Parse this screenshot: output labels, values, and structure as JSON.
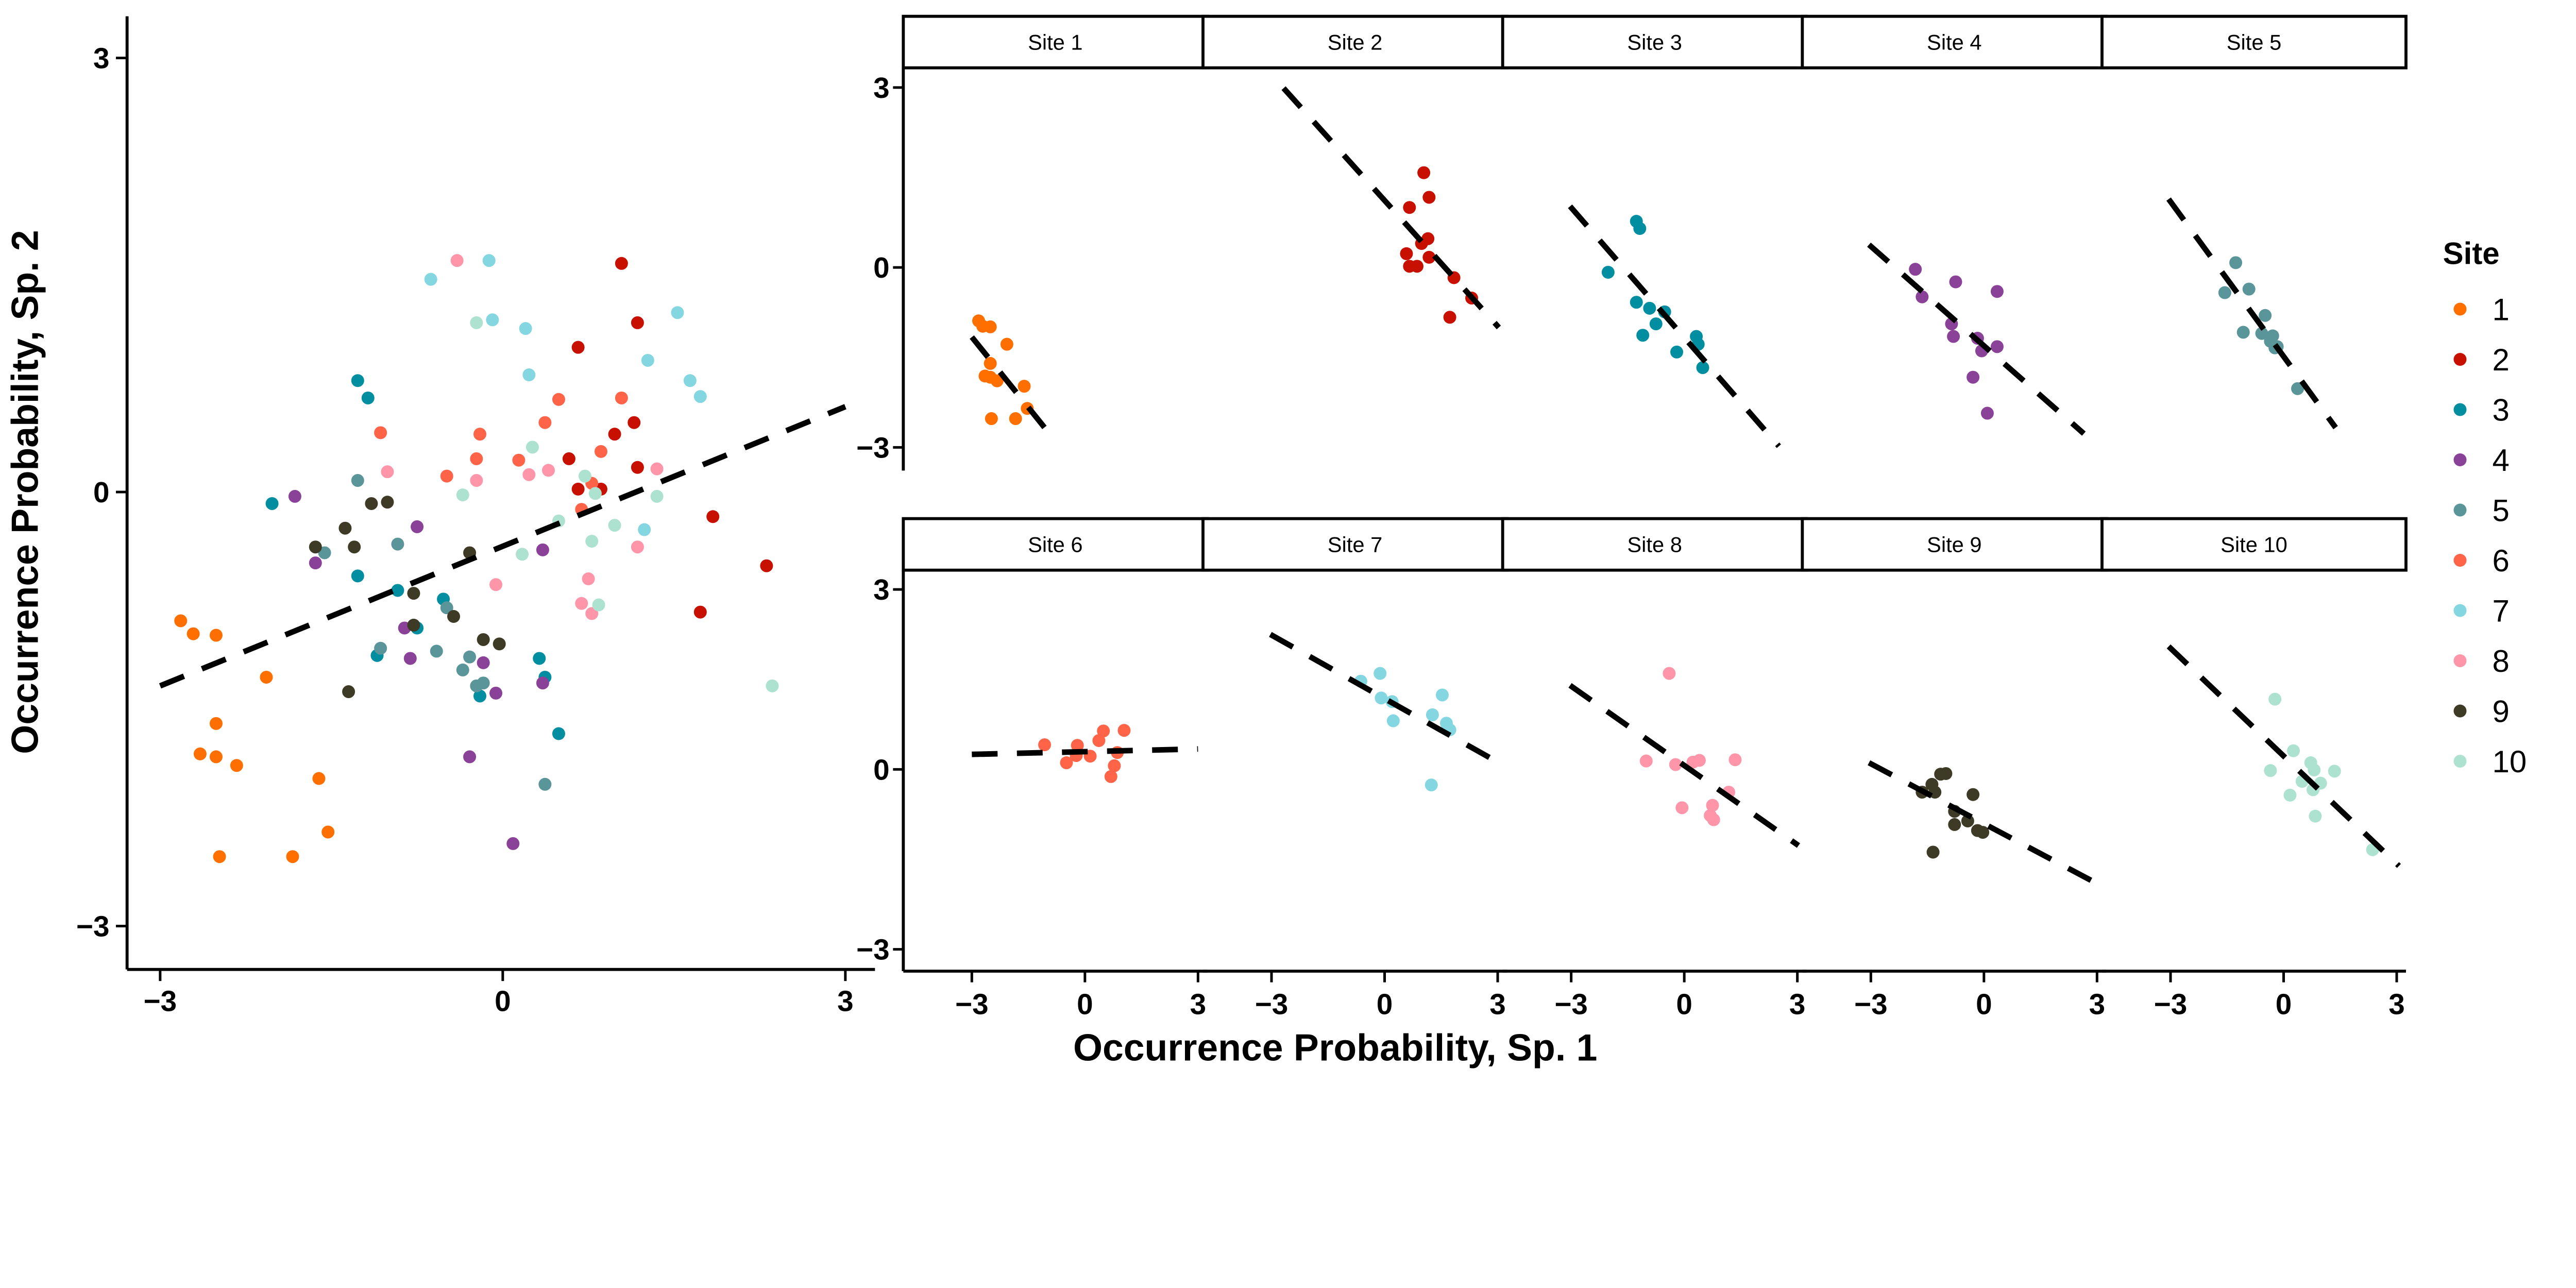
{
  "chart_data": {
    "type": "scatter",
    "xlabel": "Occurrence Probability, Sp. 1",
    "ylabel": "Occurrence Probability, Sp. 2",
    "xlim": [
      -3.3,
      3.3
    ],
    "ylim": [
      -3.3,
      3.3
    ],
    "tick_values": [
      -3,
      0,
      3
    ],
    "tick_labels": [
      "−3",
      "0",
      "3"
    ],
    "grid": false,
    "legend": {
      "title": "Site",
      "position": "right"
    },
    "overall_fit": {
      "x": [
        -3,
        3
      ],
      "y": [
        -1.34,
        0.59
      ],
      "style": "dashed"
    },
    "series": [
      {
        "name": "1",
        "label": "Site 1",
        "color": "#FF6F00",
        "x": [
          -2.82,
          -2.71,
          -2.51,
          -2.07,
          -2.51,
          -2.65,
          -2.51,
          -2.33,
          -1.61,
          -1.53,
          -2.48,
          -1.84
        ],
        "y": [
          -0.89,
          -0.98,
          -0.99,
          -1.28,
          -1.6,
          -1.81,
          -1.83,
          -1.89,
          -1.98,
          -2.35,
          -2.52,
          -2.52
        ],
        "fit": {
          "x": [
            -3,
            -0.89
          ],
          "y": [
            -1.16,
            -2.81
          ]
        }
      },
      {
        "name": "2",
        "label": "Site 2",
        "color": "#C71000",
        "x": [
          1.04,
          1.18,
          0.66,
          1.15,
          0.98,
          0.58,
          1.18,
          0.66,
          0.86,
          1.84,
          2.31,
          1.73
        ],
        "y": [
          1.58,
          1.17,
          1.0,
          0.48,
          0.4,
          0.23,
          0.17,
          0.02,
          0.02,
          -0.17,
          -0.51,
          -0.83
        ],
        "fit": {
          "x": [
            -2.68,
            3.03
          ],
          "y": [
            2.99,
            -1.0
          ]
        }
      },
      {
        "name": "3",
        "label": "Site 3",
        "color": "#008EA0",
        "x": [
          -1.27,
          -1.18,
          -2.02,
          -1.27,
          -0.92,
          -0.52,
          -0.75,
          -1.1,
          0.32,
          0.37,
          -0.2,
          0.49
        ],
        "y": [
          0.77,
          0.65,
          -0.08,
          -0.58,
          -0.68,
          -0.74,
          -0.94,
          -1.13,
          -1.15,
          -1.28,
          -1.41,
          -1.67
        ],
        "fit": {
          "x": [
            -3.03,
            2.51
          ],
          "y": [
            1.02,
            -2.98
          ]
        }
      },
      {
        "name": "4",
        "label": "Site 4",
        "color": "#8A4198",
        "x": [
          -1.82,
          -0.75,
          0.35,
          -1.64,
          -0.86,
          -0.81,
          -0.17,
          0.35,
          -0.06,
          -0.29,
          0.09
        ],
        "y": [
          -0.03,
          -0.24,
          -0.4,
          -0.49,
          -0.94,
          -1.15,
          -1.18,
          -1.32,
          -1.39,
          -1.83,
          -2.43
        ],
        "fit": {
          "x": [
            -3.05,
            2.65
          ],
          "y": [
            0.38,
            -2.77
          ]
        }
      },
      {
        "name": "5",
        "label": "Site 5",
        "color": "#5A9599",
        "x": [
          -1.27,
          -0.92,
          -1.56,
          -0.49,
          -1.07,
          -0.58,
          -0.29,
          -0.35,
          -0.17,
          -0.23,
          0.37
        ],
        "y": [
          0.08,
          -0.36,
          -0.42,
          -0.8,
          -1.08,
          -1.1,
          -1.14,
          -1.23,
          -1.32,
          -1.34,
          -2.02
        ],
        "fit": {
          "x": [
            -3.05,
            1.38
          ],
          "y": [
            1.14,
            -2.67
          ]
        }
      },
      {
        "name": "6",
        "label": "Site 6",
        "color": "#FF6348",
        "x": [
          -1.07,
          -0.2,
          0.49,
          1.04,
          0.37,
          0.86,
          -0.23,
          0.14,
          -0.49,
          0.78,
          0.69
        ],
        "y": [
          0.41,
          0.4,
          0.64,
          0.65,
          0.48,
          0.28,
          0.23,
          0.22,
          0.11,
          0.06,
          -0.12
        ],
        "fit": {
          "x": [
            -3,
            3
          ],
          "y": [
            0.25,
            0.34
          ]
        }
      },
      {
        "name": "7",
        "label": "Site 7",
        "color": "#84D7E1",
        "x": [
          -0.12,
          -0.63,
          1.53,
          -0.09,
          0.2,
          1.27,
          0.23,
          1.64,
          1.73,
          1.24
        ],
        "y": [
          1.6,
          1.47,
          1.24,
          1.19,
          1.13,
          0.91,
          0.81,
          0.77,
          0.66,
          -0.26
        ],
        "fit": {
          "x": [
            -3.03,
            3.03
          ],
          "y": [
            2.25,
            0.11
          ]
        }
      },
      {
        "name": "8",
        "label": "Site 8",
        "color": "#FF95A8",
        "x": [
          -0.4,
          1.35,
          -1.01,
          0.4,
          0.23,
          -0.23,
          1.18,
          -0.06,
          0.75,
          0.69,
          0.78
        ],
        "y": [
          1.6,
          0.16,
          0.14,
          0.15,
          0.12,
          0.08,
          -0.38,
          -0.64,
          -0.6,
          -0.77,
          -0.84
        ],
        "fit": {
          "x": [
            -3.03,
            3.03
          ],
          "y": [
            1.4,
            -1.27
          ]
        }
      },
      {
        "name": "9",
        "label": "Site 9",
        "color": "#3D3B25",
        "x": [
          -1.15,
          -1.01,
          -1.38,
          -0.29,
          -1.64,
          -1.3,
          -0.78,
          -0.43,
          -0.78,
          -0.17,
          -0.03,
          -1.35
        ],
        "y": [
          -0.08,
          -0.07,
          -0.25,
          -0.42,
          -0.38,
          -0.38,
          -0.7,
          -0.86,
          -0.92,
          -1.02,
          -1.05,
          -1.38
        ],
        "fit": {
          "x": [
            -3.05,
            3.08
          ],
          "y": [
            0.11,
            -1.93
          ]
        }
      },
      {
        "name": "10",
        "label": "Site 10",
        "color": "#ADE2D0",
        "x": [
          -0.23,
          0.26,
          0.72,
          1.35,
          -0.35,
          0.81,
          0.98,
          0.49,
          0.78,
          0.17,
          0.84,
          2.36
        ],
        "y": [
          1.17,
          0.31,
          0.11,
          -0.03,
          -0.02,
          -0.01,
          -0.23,
          -0.2,
          -0.34,
          -0.43,
          -0.78,
          -1.34
        ],
        "fit": {
          "x": [
            -3.05,
            3.06
          ],
          "y": [
            2.05,
            -1.61
          ]
        }
      }
    ]
  }
}
